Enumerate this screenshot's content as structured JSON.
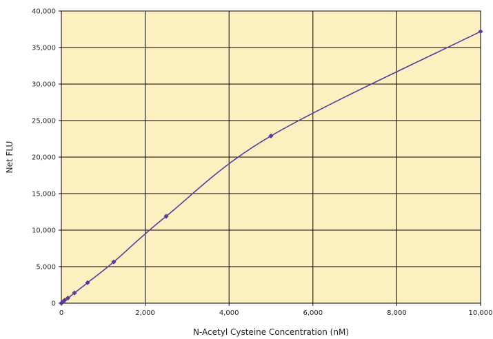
{
  "chart_data": {
    "type": "line",
    "title": "",
    "xlabel": "N-Acetyl Cysteine Concentration (nM)",
    "ylabel": "Net FLU",
    "xlim": [
      0,
      10000
    ],
    "ylim": [
      0,
      40000
    ],
    "x_ticks": [
      0,
      2000,
      4000,
      6000,
      8000,
      10000
    ],
    "x_tick_labels": [
      "0",
      "2,000",
      "4,000",
      "6,000",
      "8,000",
      "10,000"
    ],
    "y_ticks": [
      0,
      5000,
      10000,
      15000,
      20000,
      25000,
      30000,
      35000,
      40000
    ],
    "y_tick_labels": [
      "0",
      "5,000",
      "10,000",
      "15,000",
      "20,000",
      "25,000",
      "30,000",
      "35,000",
      "40,000"
    ],
    "grid": true,
    "legend": "none",
    "series": [
      {
        "marker": "diamond",
        "x": [
          0,
          39,
          78,
          156,
          313,
          625,
          1250,
          2500,
          5000,
          10000
        ],
        "y": [
          0,
          200,
          400,
          700,
          1400,
          2800,
          5650,
          11900,
          22900,
          37200
        ]
      }
    ],
    "colors": {
      "plot_background": "#fcefc0",
      "grid": "#000000",
      "series": "#5b3a99"
    }
  }
}
